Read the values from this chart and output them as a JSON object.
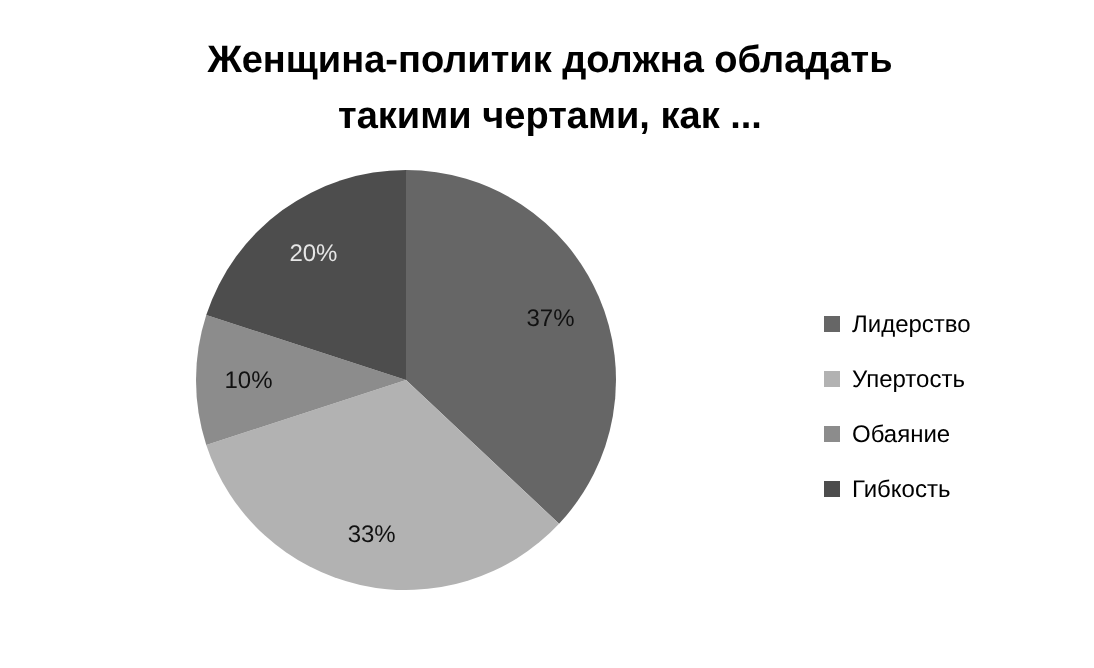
{
  "chart_data": {
    "type": "pie",
    "title": "Женщина-политик должна обладать\nтакими чертами, как ...",
    "categories": [
      "Лидерство",
      "Упертость",
      "Обаяние",
      "Гибкость"
    ],
    "values": [
      37,
      33,
      10,
      20
    ],
    "colors": [
      "#666666",
      "#b2b2b2",
      "#8c8c8c",
      "#4d4d4d"
    ],
    "value_labels": [
      "37%",
      "33%",
      "10%",
      "20%"
    ],
    "legend": "right"
  }
}
